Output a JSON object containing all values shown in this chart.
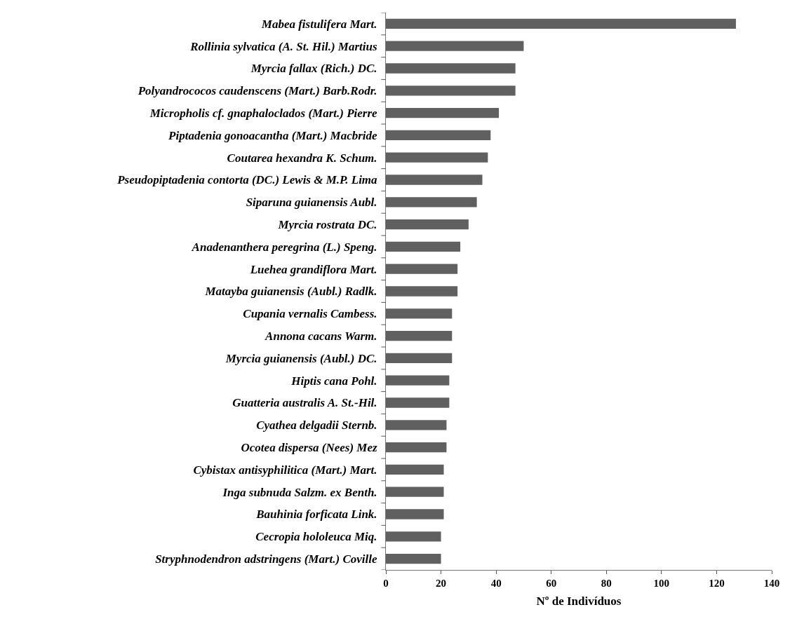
{
  "chart_data": {
    "type": "bar",
    "orientation": "horizontal",
    "xlabel": "Nº de Indivíduos",
    "categories": [
      "Mabea fistulifera Mart.",
      "Rollinia sylvatica (A. St. Hil.) Martius",
      "Myrcia fallax (Rich.) DC.",
      "Polyandrococos caudenscens (Mart.) Barb.Rodr.",
      "Micropholis cf. gnaphaloclados (Mart.) Pierre",
      "Piptadenia gonoacantha (Mart.) Macbride",
      "Coutarea hexandra K. Schum.",
      "Pseudopiptadenia contorta (DC.) Lewis & M.P. Lima",
      "Siparuna guianensis Aubl.",
      "Myrcia rostrata DC.",
      "Anadenanthera peregrina (L.) Speng.",
      "Luehea grandiflora Mart.",
      "Matayba guianensis (Aubl.) Radlk.",
      "Cupania vernalis Cambess.",
      "Annona cacans Warm.",
      "Myrcia guianensis (Aubl.) DC.",
      "Hiptis cana Pohl.",
      "Guatteria australis A. St.-Hil.",
      "Cyathea delgadii Sternb.",
      "Ocotea dispersa (Nees) Mez",
      "Cybistax antisyphilitica (Mart.) Mart.",
      "Inga subnuda Salzm. ex Benth.",
      "Bauhinia forficata Link.",
      "Cecropia hololeuca Miq.",
      "Stryphnodendron adstringens (Mart.) Coville"
    ],
    "values": [
      127,
      50,
      47,
      47,
      41,
      38,
      37,
      35,
      33,
      30,
      27,
      26,
      26,
      24,
      24,
      24,
      23,
      23,
      22,
      22,
      21,
      21,
      21,
      20,
      20
    ],
    "color": "#606060",
    "xlim": [
      0,
      140
    ],
    "xticks": [
      0,
      20,
      40,
      60,
      80,
      100,
      120,
      140
    ]
  }
}
